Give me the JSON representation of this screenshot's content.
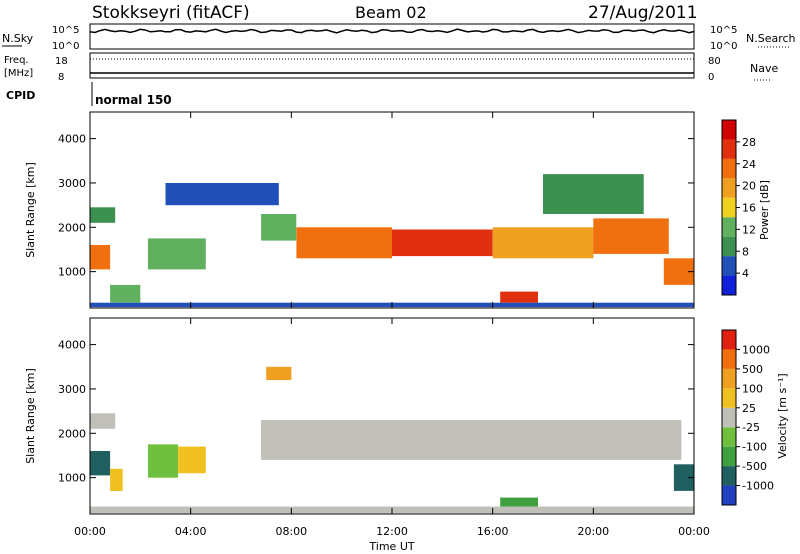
{
  "header": {
    "station": "Stokkseyri (fitACF)",
    "beam": "Beam 02",
    "date": "27/Aug/2011"
  },
  "summary_panels": {
    "nsky_label": "N.Sky",
    "nsky_ticks": [
      "10^5",
      "10^0"
    ],
    "nsearch_label": "N.Search",
    "nsearch_ticks": [
      "10^5",
      "10^0"
    ],
    "freq_label_1": "Freq.",
    "freq_label_2": "[MHz]",
    "freq_ticks": [
      "18",
      "8"
    ],
    "nave_label": "Nave",
    "nave_ticks": [
      "80",
      "0"
    ],
    "cpid_label": "CPID",
    "cpid_value": "normal 150"
  },
  "power_panel": {
    "ylabel": "Slant Range [km]",
    "yticks": [
      "4000",
      "3000",
      "2000",
      "1000"
    ],
    "colorbar_label": "Power [dB]",
    "colorbar_ticks": [
      "28",
      "24",
      "20",
      "16",
      "12",
      "8",
      "4"
    ],
    "colors": [
      "#1020d8",
      "#2050b8",
      "#3c9050",
      "#60b060",
      "#f0d020",
      "#f0a020",
      "#f07010",
      "#e03010",
      "#d00000"
    ]
  },
  "velocity_panel": {
    "ylabel": "Slant Range [km]",
    "yticks": [
      "4000",
      "3000",
      "2000",
      "1000"
    ],
    "colorbar_label": "Velocity [m s⁻¹]",
    "colorbar_ticks": [
      "1000",
      "500",
      "100",
      "25",
      "-25",
      "-100",
      "-500",
      "-1000"
    ],
    "colors": [
      "#2040c0",
      "#206060",
      "#40a040",
      "#70c040",
      "#c0c0b8",
      "#f0c020",
      "#f0a020",
      "#f07010",
      "#e02010"
    ]
  },
  "xaxis": {
    "label": "Time UT",
    "ticks": [
      "00:00",
      "04:00",
      "08:00",
      "12:00",
      "16:00",
      "20:00",
      "00:00"
    ]
  },
  "chart_data": [
    {
      "type": "heatmap",
      "title": "Stokkseyri (fitACF) Beam 02 27/Aug/2011",
      "xlabel": "Time UT",
      "ylabel": "Slant Range [km]",
      "quantity": "Power [dB]",
      "xlim": [
        "00:00",
        "24:00"
      ],
      "ylim": [
        180,
        4600
      ],
      "clim": [
        0,
        32
      ],
      "regions": [
        {
          "t0": 0.0,
          "t1": 1.0,
          "r0": 2100,
          "r1": 2450,
          "value": 8
        },
        {
          "t0": 0.0,
          "t1": 0.8,
          "r0": 1050,
          "r1": 1600,
          "value": 24
        },
        {
          "t0": 0.8,
          "t1": 2.0,
          "r0": 300,
          "r1": 700,
          "value": 14
        },
        {
          "t0": 2.3,
          "t1": 4.6,
          "r0": 1050,
          "r1": 1750,
          "value": 14
        },
        {
          "t0": 6.8,
          "t1": 8.2,
          "r0": 1700,
          "r1": 2300,
          "value": 12
        },
        {
          "t0": 8.2,
          "t1": 12.0,
          "r0": 1300,
          "r1": 2000,
          "value": 24
        },
        {
          "t0": 12.0,
          "t1": 16.0,
          "r0": 1350,
          "r1": 1950,
          "value": 26
        },
        {
          "t0": 16.0,
          "t1": 20.0,
          "r0": 1300,
          "r1": 2000,
          "value": 20
        },
        {
          "t0": 20.0,
          "t1": 23.0,
          "r0": 1400,
          "r1": 2200,
          "value": 22
        },
        {
          "t0": 16.3,
          "t1": 17.8,
          "r0": 300,
          "r1": 550,
          "value": 26
        },
        {
          "t0": 22.8,
          "t1": 24.0,
          "r0": 700,
          "r1": 1300,
          "value": 22
        },
        {
          "t0": 0.0,
          "t1": 24.0,
          "r0": 200,
          "r1": 300,
          "value": 6
        },
        {
          "t0": 3.0,
          "t1": 7.5,
          "r0": 2500,
          "r1": 3000,
          "value": 6
        },
        {
          "t0": 18.0,
          "t1": 22.0,
          "r0": 2300,
          "r1": 3200,
          "value": 8
        }
      ]
    },
    {
      "type": "heatmap",
      "title": "Stokkseyri (fitACF) Beam 02 27/Aug/2011",
      "xlabel": "Time UT",
      "ylabel": "Slant Range [km]",
      "quantity": "Velocity [m s-1]",
      "xlim": [
        "00:00",
        "24:00"
      ],
      "ylim": [
        180,
        4600
      ],
      "clim": [
        -1000,
        1000
      ],
      "regions": [
        {
          "t0": 0.0,
          "t1": 1.0,
          "r0": 2100,
          "r1": 2450,
          "value": 0
        },
        {
          "t0": 0.0,
          "t1": 0.8,
          "r0": 1050,
          "r1": 1600,
          "value": -700
        },
        {
          "t0": 0.8,
          "t1": 1.3,
          "r0": 700,
          "r1": 1200,
          "value": 300
        },
        {
          "t0": 2.3,
          "t1": 3.5,
          "r0": 1000,
          "r1": 1750,
          "value": -150
        },
        {
          "t0": 3.5,
          "t1": 4.6,
          "r0": 1100,
          "r1": 1700,
          "value": 200
        },
        {
          "t0": 6.8,
          "t1": 23.5,
          "r0": 1400,
          "r1": 2300,
          "value": 0
        },
        {
          "t0": 16.3,
          "t1": 17.8,
          "r0": 300,
          "r1": 550,
          "value": -400
        },
        {
          "t0": 23.2,
          "t1": 24.0,
          "r0": 700,
          "r1": 1300,
          "value": -700
        },
        {
          "t0": 0.0,
          "t1": 24.0,
          "r0": 200,
          "r1": 350,
          "value": 60
        },
        {
          "t0": 7.0,
          "t1": 8.0,
          "r0": 3200,
          "r1": 3500,
          "value": 500
        }
      ]
    }
  ]
}
